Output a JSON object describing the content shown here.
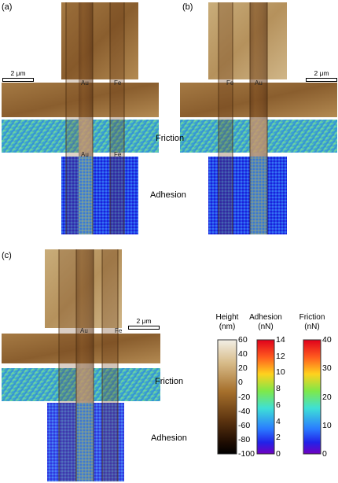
{
  "panels": {
    "a": {
      "label": "(a)",
      "scale_bar": "2 μm",
      "metal_top": [
        "Au",
        "Fe"
      ],
      "metal_mid": [
        "Au",
        "Fe"
      ],
      "friction": "Friction",
      "adhesion": "Adhesion"
    },
    "b": {
      "label": "(b)",
      "scale_bar": "2 μm",
      "metal_top": [
        "Fe",
        "Au"
      ]
    },
    "c": {
      "label": "(c)",
      "scale_bar": "2 μm",
      "metal_top": [
        "Au",
        "Fe"
      ],
      "friction": "Friction",
      "adhesion": "Adhesion"
    }
  },
  "colorbars": [
    {
      "title": "Height",
      "unit": "(nm)",
      "ticks": [
        "60",
        "40",
        "20",
        "0",
        "-20",
        "-40",
        "-60",
        "-80",
        "-100"
      ],
      "range": [
        -100,
        60
      ]
    },
    {
      "title": "Adhesion",
      "unit": "(nN)",
      "ticks": [
        "14",
        "12",
        "10",
        "8",
        "6",
        "4",
        "2",
        "0"
      ],
      "range": [
        0,
        14
      ]
    },
    {
      "title": "Friction",
      "unit": "(nN)",
      "ticks": [
        "40",
        "30",
        "20",
        "10",
        "0"
      ],
      "range": [
        0,
        40
      ]
    }
  ]
}
